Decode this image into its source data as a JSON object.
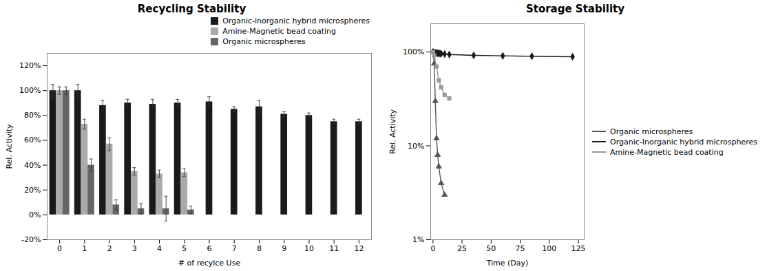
{
  "chart_data": [
    {
      "type": "bar",
      "title": "Recycling Stability",
      "x_label": "# of recylce Use",
      "y_label": "Rel. Activity",
      "categories": [
        0,
        1,
        2,
        3,
        4,
        5,
        6,
        7,
        8,
        9,
        10,
        11,
        12
      ],
      "series": [
        {
          "name": "Organic-inorganic hybrid microspheres",
          "color": "#1a1a1a",
          "values": [
            100,
            100,
            88,
            90,
            89,
            90,
            91,
            85,
            87,
            81,
            80,
            75,
            75
          ],
          "errors": [
            5,
            5,
            4,
            3,
            4,
            3,
            4,
            2,
            5,
            2,
            2,
            2,
            2
          ]
        },
        {
          "name": "Amine-Magnetic bead coating",
          "color": "#aaaaaa",
          "values": [
            100,
            73,
            57,
            35,
            33,
            34,
            null,
            null,
            null,
            null,
            null,
            null,
            null
          ],
          "errors": [
            3,
            4,
            5,
            3,
            3,
            3,
            null,
            null,
            null,
            null,
            null,
            null,
            null
          ]
        },
        {
          "name": "Organic microspheres",
          "color": "#666666",
          "values": [
            100,
            40,
            8,
            5,
            5,
            4,
            null,
            null,
            null,
            null,
            null,
            null,
            null
          ],
          "errors": [
            3,
            5,
            4,
            4,
            10,
            3,
            null,
            null,
            null,
            null,
            null,
            null,
            null
          ]
        }
      ],
      "ylim": [
        -20,
        130
      ],
      "yticks": [
        {
          "value": -20,
          "label": "-20%"
        },
        {
          "value": 0,
          "label": "0%"
        },
        {
          "value": 20,
          "label": "20%"
        },
        {
          "value": 40,
          "label": "40%"
        },
        {
          "value": 60,
          "label": "60%"
        },
        {
          "value": 80,
          "label": "80%"
        },
        {
          "value": 100,
          "label": "100%"
        },
        {
          "value": 120,
          "label": "120%"
        }
      ],
      "grid": false,
      "legend": "top-right"
    },
    {
      "type": "line",
      "title": "Storage Stability",
      "x_label": "Time (Day)",
      "y_label": "Rel. Activity",
      "series": [
        {
          "name": "Organic microspheres",
          "color": "#555555",
          "marker": "triangle",
          "x": [
            0,
            1,
            2,
            3,
            4,
            5,
            7,
            10
          ],
          "values": [
            100,
            75,
            30,
            12,
            8,
            6,
            4,
            3
          ]
        },
        {
          "name": "Organic-Inorganic hybrid microspheres",
          "color": "#1a1a1a",
          "marker": "diamond",
          "x": [
            0,
            1,
            2,
            3,
            4,
            5,
            6,
            7,
            10,
            14,
            35,
            60,
            85,
            120
          ],
          "values": [
            100,
            99,
            98,
            98,
            97,
            97,
            96,
            96,
            95,
            94,
            92,
            91,
            90,
            89
          ]
        },
        {
          "name": "Amine-Magnetic bead coating",
          "color": "#999999",
          "marker": "square",
          "x": [
            0,
            1,
            3,
            5,
            7,
            10,
            14
          ],
          "values": [
            100,
            92,
            70,
            50,
            42,
            35,
            32
          ]
        }
      ],
      "log": "y",
      "xlim": [
        -2,
        130
      ],
      "xticks": [
        0,
        25,
        50,
        75,
        100,
        125
      ],
      "ylim": [
        1,
        200
      ],
      "yticks": [
        {
          "value": 1,
          "label": "1%"
        },
        {
          "value": 10,
          "label": "10%"
        },
        {
          "value": 100,
          "label": "100%"
        }
      ],
      "grid": false,
      "legend": "right"
    }
  ]
}
